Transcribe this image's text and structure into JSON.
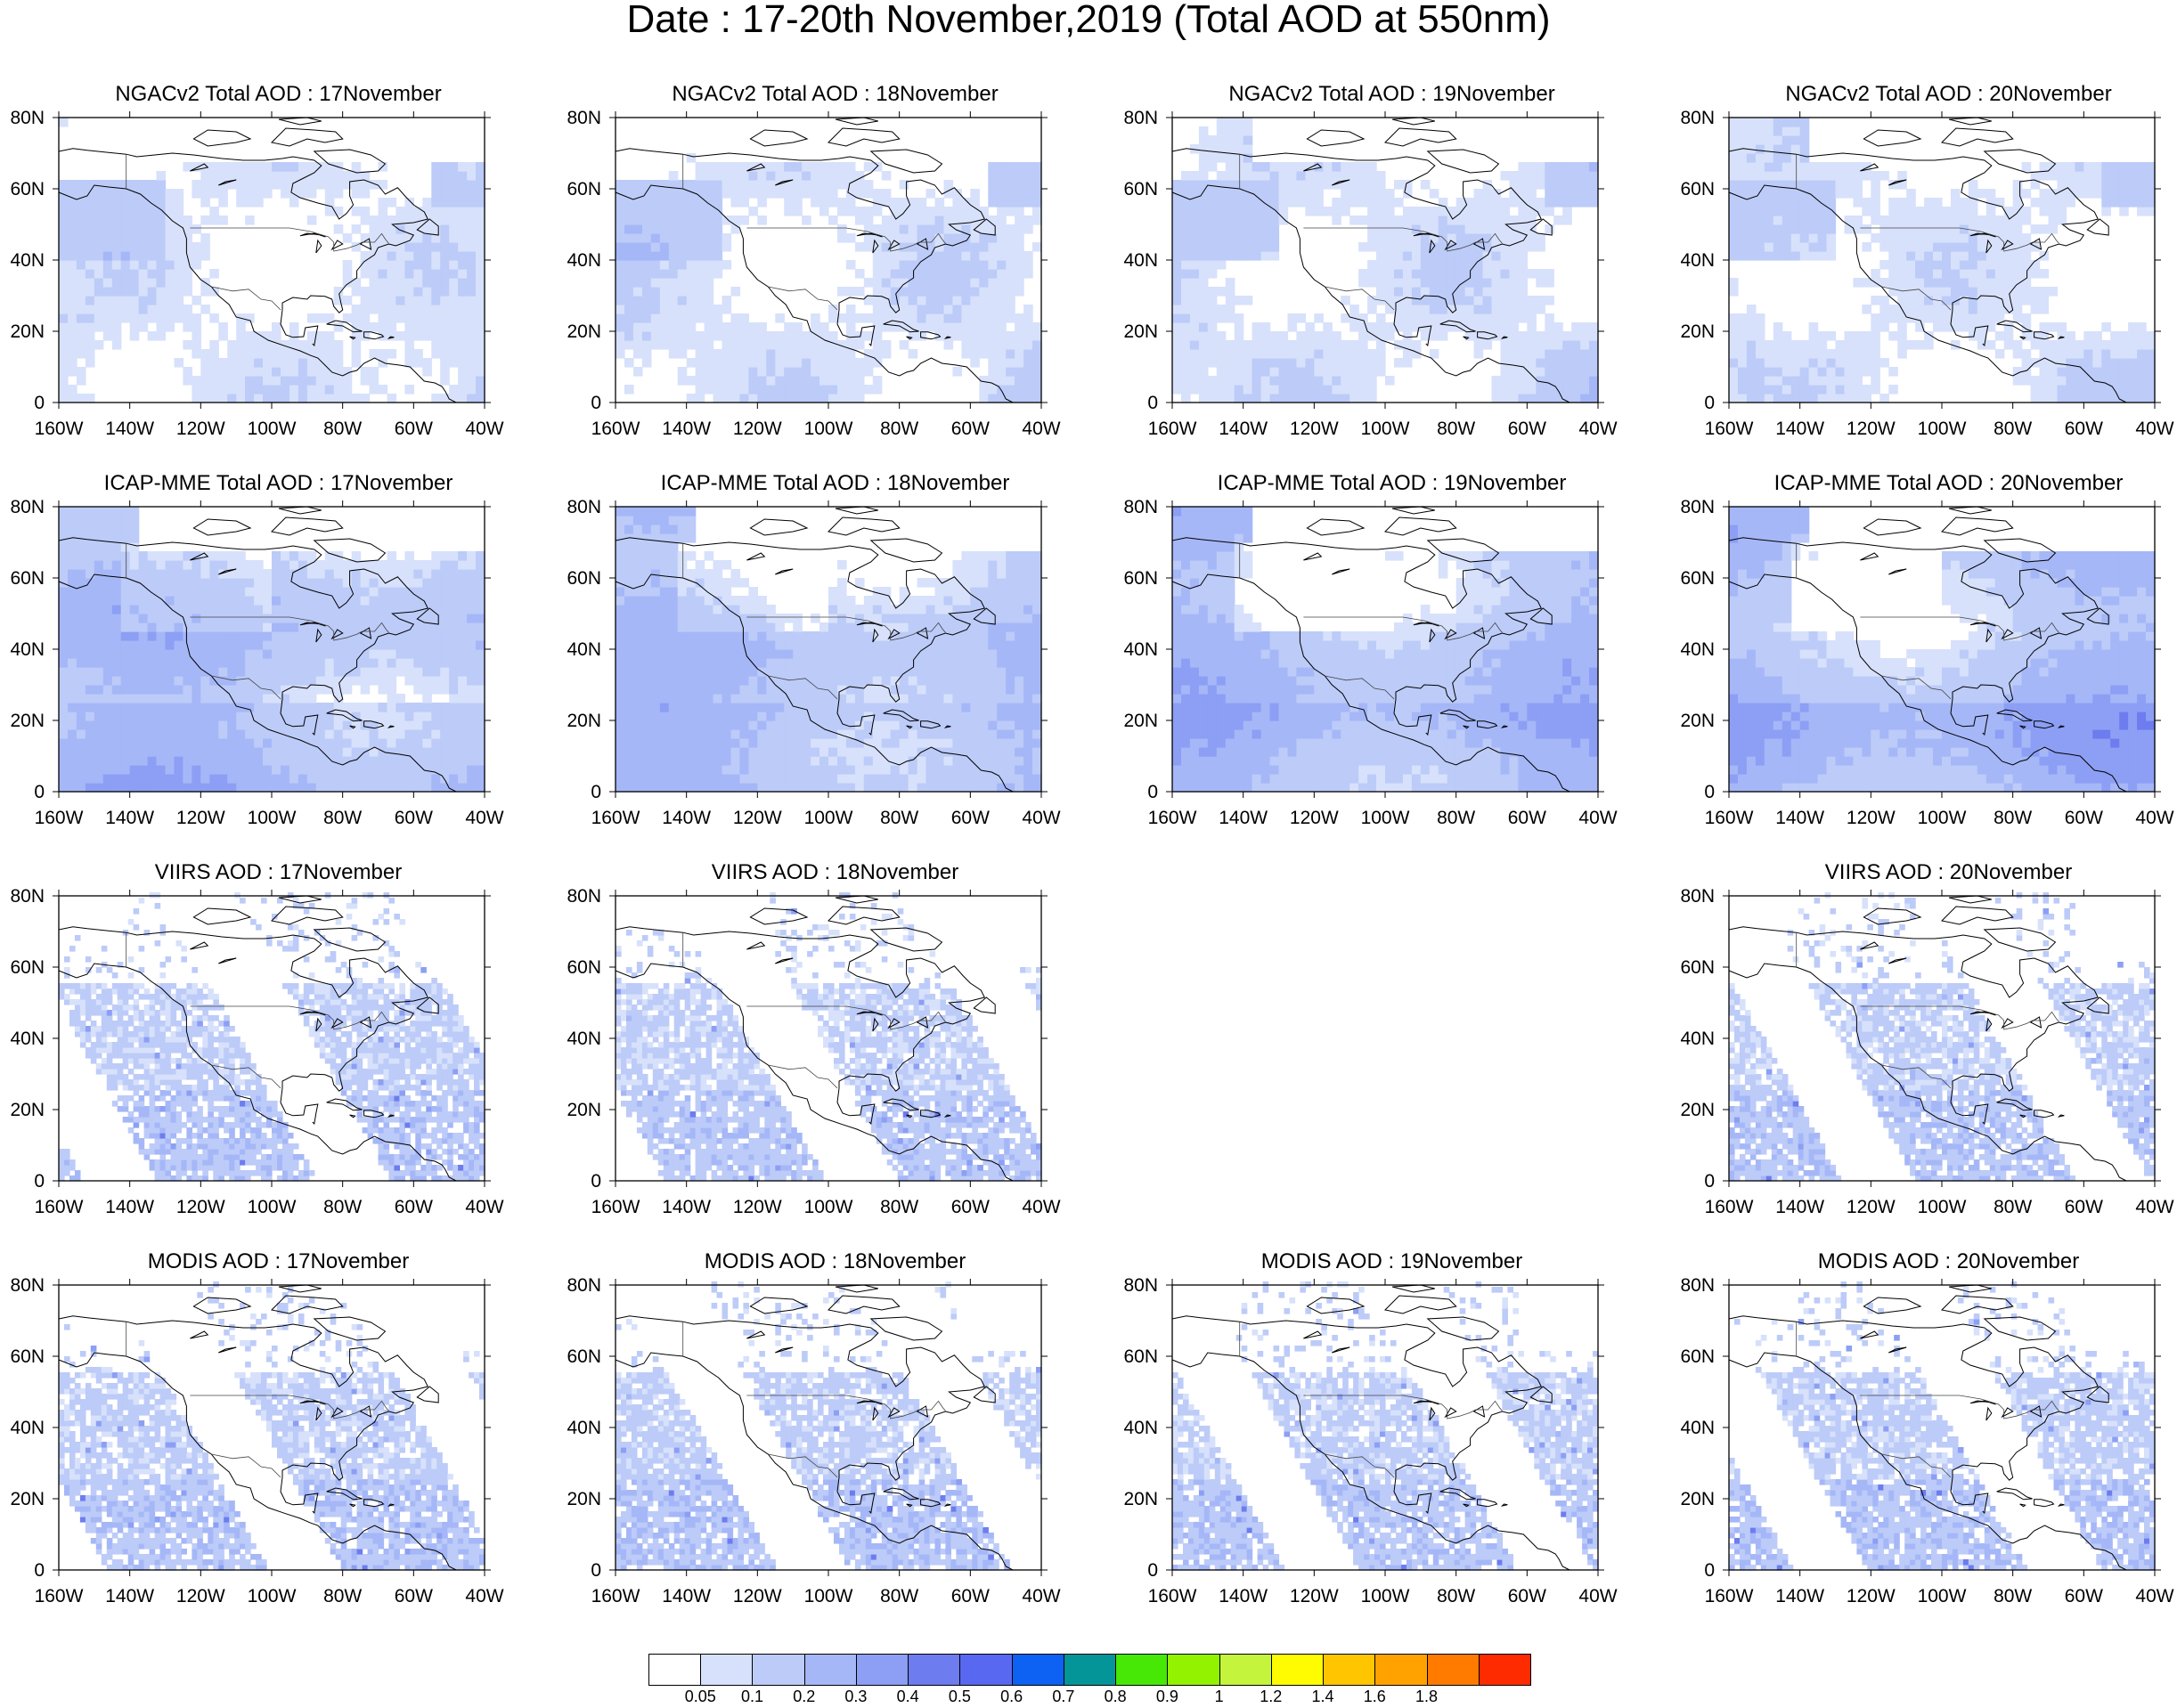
{
  "title": "Date : 17-20th November,2019 (Total AOD at 550nm)",
  "axes": {
    "x_ticks": [
      "160W",
      "140W",
      "120W",
      "100W",
      "80W",
      "60W",
      "40W"
    ],
    "y_ticks": [
      "0",
      "20N",
      "40N",
      "60N",
      "80N"
    ]
  },
  "rows": [
    {
      "source": "NGACv2",
      "panels": [
        {
          "title": "NGACv2 Total AOD : 17November",
          "present": true,
          "pattern": "model",
          "intensity": 0.35
        },
        {
          "title": "NGACv2 Total AOD : 18November",
          "present": true,
          "pattern": "model",
          "intensity": 0.4
        },
        {
          "title": "NGACv2 Total AOD : 19November",
          "present": true,
          "pattern": "model",
          "intensity": 0.4
        },
        {
          "title": "NGACv2 Total AOD : 20November",
          "present": true,
          "pattern": "model",
          "intensity": 0.35
        }
      ]
    },
    {
      "source": "ICAP-MME",
      "panels": [
        {
          "title": "ICAP-MME Total AOD : 17November",
          "present": true,
          "pattern": "ensemble",
          "intensity": 0.8
        },
        {
          "title": "ICAP-MME Total AOD : 18November",
          "present": true,
          "pattern": "ensemble",
          "intensity": 0.75
        },
        {
          "title": "ICAP-MME Total AOD : 19November",
          "present": true,
          "pattern": "ensemble",
          "intensity": 0.85
        },
        {
          "title": "ICAP-MME Total AOD : 20November",
          "present": true,
          "pattern": "ensemble",
          "intensity": 0.85
        }
      ]
    },
    {
      "source": "VIIRS",
      "panels": [
        {
          "title": "VIIRS AOD : 17November",
          "present": true,
          "pattern": "swath",
          "intensity": 0.55
        },
        {
          "title": "VIIRS AOD : 18November",
          "present": true,
          "pattern": "swath",
          "intensity": 0.5
        },
        {
          "title": "",
          "present": false
        },
        {
          "title": "VIIRS AOD : 20November",
          "present": true,
          "pattern": "swath",
          "intensity": 0.55
        }
      ]
    },
    {
      "source": "MODIS",
      "panels": [
        {
          "title": "MODIS AOD : 17November",
          "present": true,
          "pattern": "swath",
          "intensity": 0.6
        },
        {
          "title": "MODIS AOD : 18November",
          "present": true,
          "pattern": "swath",
          "intensity": 0.65
        },
        {
          "title": "MODIS AOD : 19November",
          "present": true,
          "pattern": "swath",
          "intensity": 0.55
        },
        {
          "title": "MODIS AOD : 20November",
          "present": true,
          "pattern": "swath",
          "intensity": 0.6
        }
      ]
    }
  ],
  "colorbar": {
    "colors": [
      "#ffffff",
      "#d7e1fb",
      "#bccbf8",
      "#a5b7f7",
      "#8c9ff4",
      "#6d7cee",
      "#5868f0",
      "#0d61f3",
      "#049599",
      "#47e805",
      "#92f200",
      "#c5f43d",
      "#fffb00",
      "#ffc600",
      "#ffa200",
      "#ff7b00",
      "#ff2b00"
    ],
    "labels": [
      "0.05",
      "0.1",
      "0.2",
      "0.3",
      "0.4",
      "0.5",
      "0.6",
      "0.7",
      "0.8",
      "0.9",
      "1",
      "1.2",
      "1.4",
      "1.6",
      "1.8"
    ]
  }
}
